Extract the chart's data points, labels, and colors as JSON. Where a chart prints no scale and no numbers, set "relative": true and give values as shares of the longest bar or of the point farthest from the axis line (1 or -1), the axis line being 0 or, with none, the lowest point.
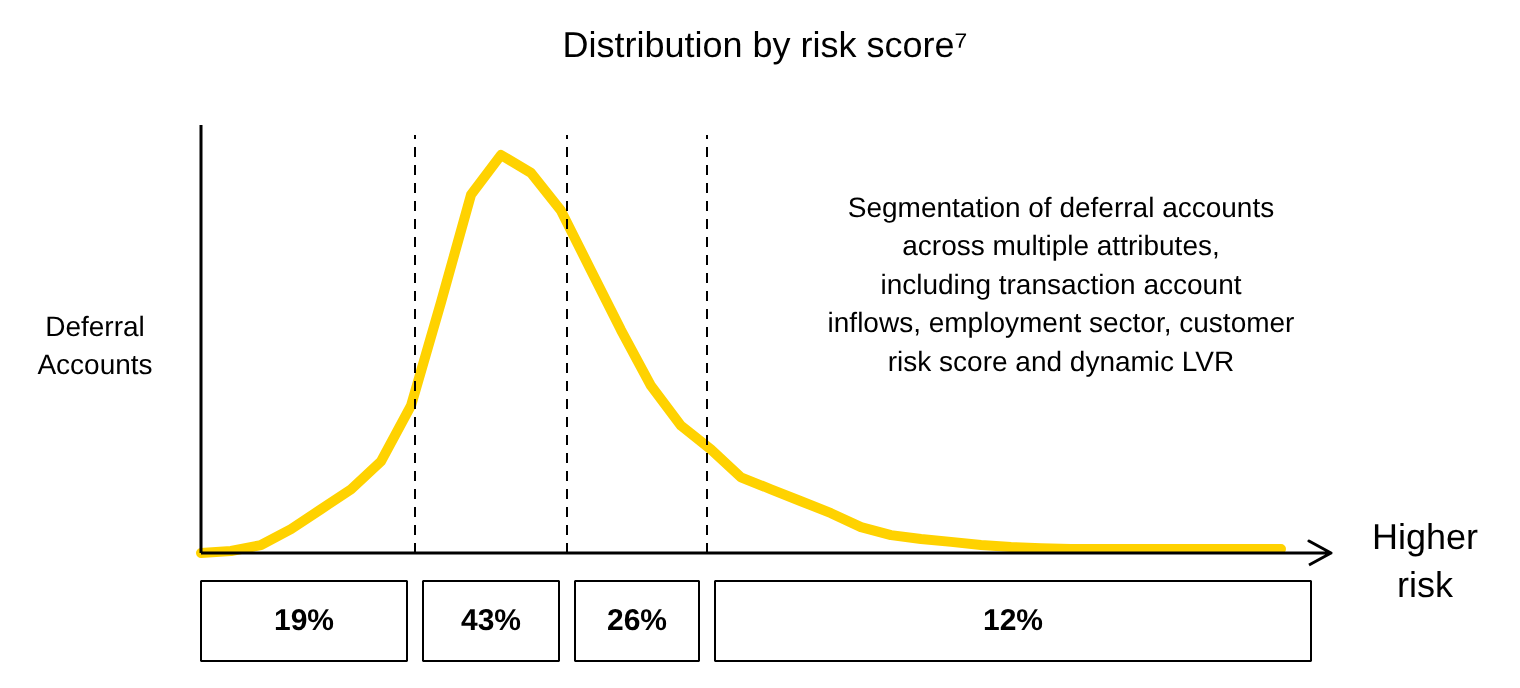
{
  "chart_data": {
    "type": "line",
    "relative": true,
    "title": "Distribution by risk score⁷",
    "xlabel": "Higher risk",
    "ylabel": "Deferral Accounts",
    "tick_labels": false,
    "legend": false,
    "marker": "none",
    "line_style": "solid",
    "categories": [
      null,
      null,
      null,
      null,
      null,
      null,
      null,
      null,
      null,
      null,
      null,
      null,
      null,
      null,
      null,
      null,
      null,
      null,
      null,
      null,
      null,
      null,
      null,
      null,
      null,
      null,
      null,
      null,
      null,
      null,
      null,
      null,
      null,
      null,
      null,
      null,
      null
    ],
    "series": [
      {
        "color": "#ffd200",
        "values": [
          0,
          0.005,
          0.02,
          0.06,
          0.11,
          0.16,
          0.23,
          0.37,
          0.63,
          0.9,
          1,
          0.955,
          0.86,
          0.71,
          0.56,
          0.42,
          0.32,
          0.26,
          0.19,
          0.16,
          0.13,
          0.1,
          0.065,
          0.045,
          0.035,
          0.028,
          0.02,
          0.015,
          0.012,
          0.01,
          0.01,
          0.01,
          0.01,
          0.01,
          0.01,
          0.01,
          0.01
        ]
      }
    ],
    "annotations": [
      "19%",
      "43%",
      "26%",
      "12%",
      "Segmentation of deferral accounts across multiple attributes, including transaction account inflows, employment sector, customer risk score and dynamic LVR"
    ]
  }
}
